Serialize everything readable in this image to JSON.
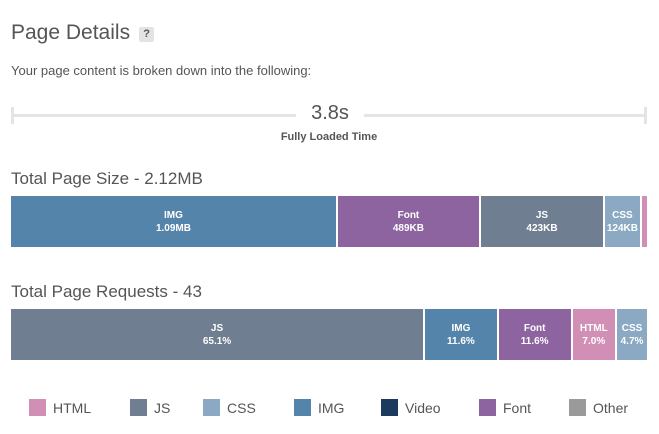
{
  "header": {
    "title": "Page Details",
    "help_label": "?"
  },
  "subtitle": "Your page content is broken down into the following:",
  "timeline": {
    "value": "3.8s",
    "label": "Fully Loaded Time"
  },
  "colors": {
    "HTML": "#d28fb5",
    "JS": "#6f7e90",
    "CSS": "#8ba9c2",
    "IMG": "#5484aa",
    "Video": "#1c3a5d",
    "Font": "#8d64a0",
    "Other": "#9a9a9a"
  },
  "size_section": {
    "title": "Total Page Size - 2.12MB",
    "segments": [
      {
        "type": "IMG",
        "label": "IMG",
        "value": "1.09MB",
        "fraction": 0.514
      },
      {
        "type": "Font",
        "label": "Font",
        "value": "489KB",
        "fraction": 0.225
      },
      {
        "type": "JS",
        "label": "JS",
        "value": "423KB",
        "fraction": 0.195
      },
      {
        "type": "CSS",
        "label": "CSS",
        "value": "124KB",
        "fraction": 0.058
      },
      {
        "type": "HTML",
        "label": "",
        "value": "",
        "fraction": 0.008
      }
    ]
  },
  "requests_section": {
    "title": "Total Page Requests - 43",
    "segments": [
      {
        "type": "JS",
        "label": "JS",
        "value": "65.1%",
        "fraction": 0.651
      },
      {
        "type": "IMG",
        "label": "IMG",
        "value": "11.6%",
        "fraction": 0.116
      },
      {
        "type": "Font",
        "label": "Font",
        "value": "11.6%",
        "fraction": 0.116
      },
      {
        "type": "HTML",
        "label": "HTML",
        "value": "7.0%",
        "fraction": 0.07
      },
      {
        "type": "CSS",
        "label": "CSS",
        "value": "4.7%",
        "fraction": 0.047
      }
    ]
  },
  "legend": [
    {
      "type": "HTML",
      "label": "HTML"
    },
    {
      "type": "JS",
      "label": "JS"
    },
    {
      "type": "CSS",
      "label": "CSS"
    },
    {
      "type": "IMG",
      "label": "IMG"
    },
    {
      "type": "Video",
      "label": "Video"
    },
    {
      "type": "Font",
      "label": "Font"
    },
    {
      "type": "Other",
      "label": "Other"
    }
  ]
}
